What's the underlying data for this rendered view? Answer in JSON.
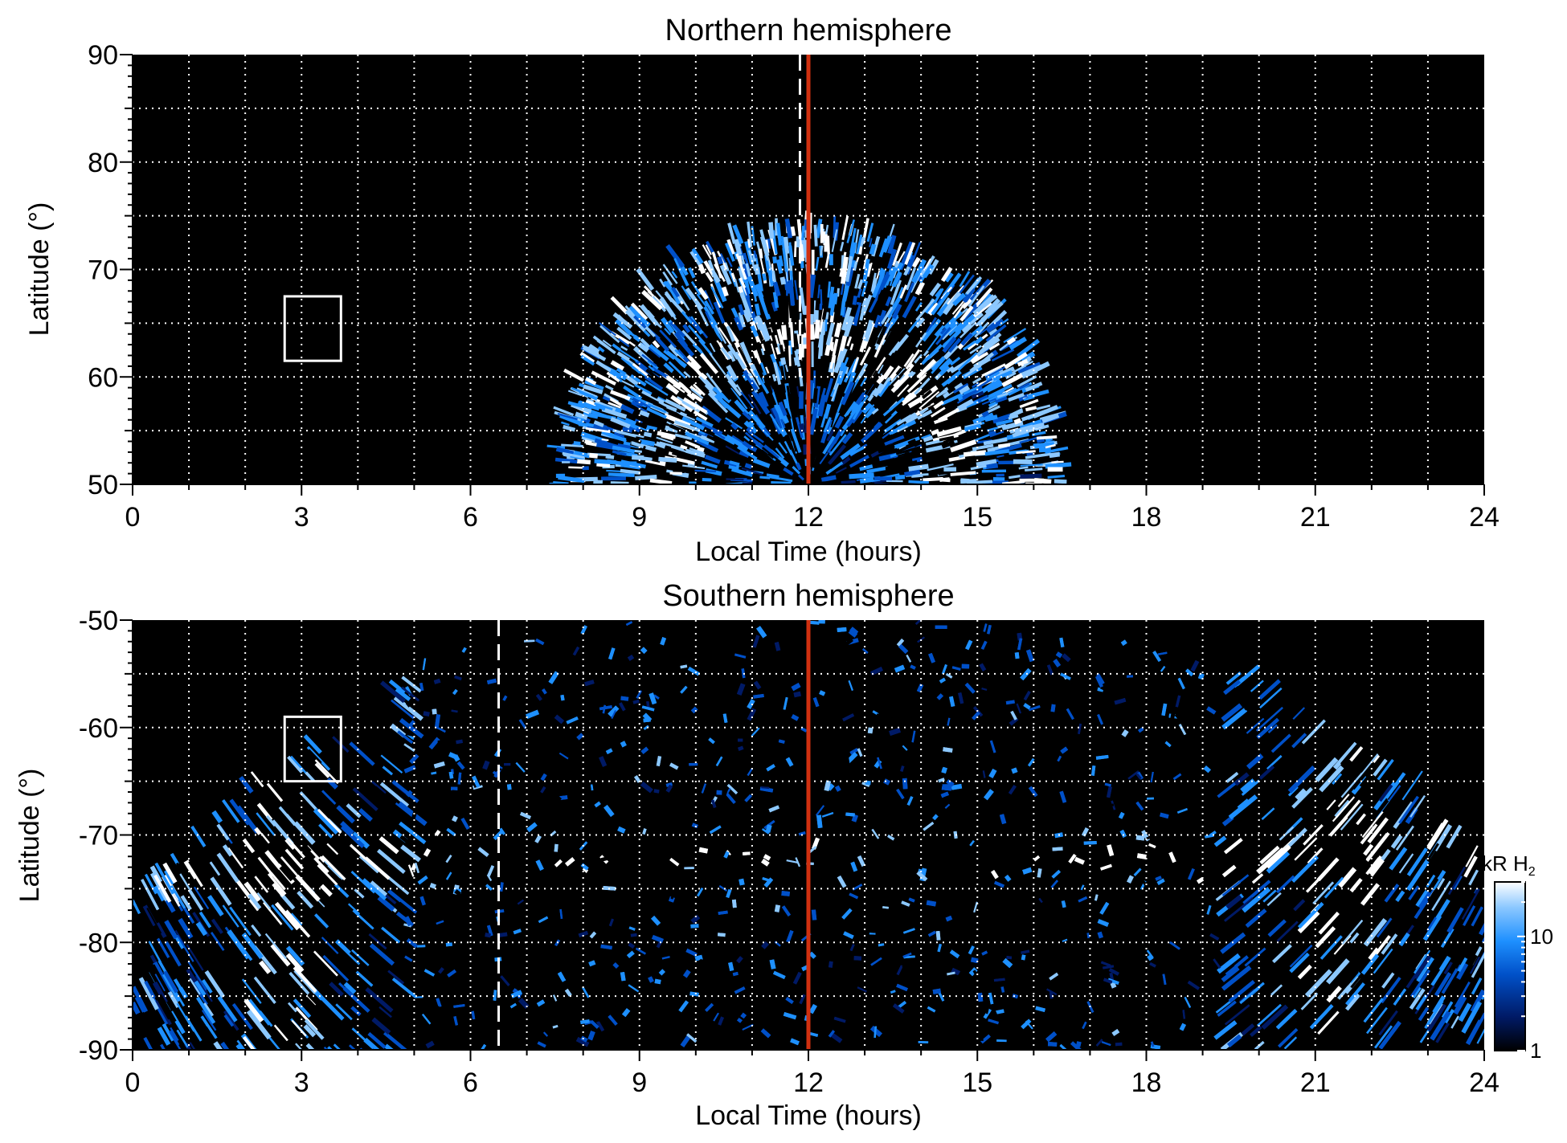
{
  "chart_data": [
    {
      "type": "heatmap",
      "title": "Northern hemisphere",
      "xlabel": "Local Time (hours)",
      "ylabel": "Latitude (°)",
      "xlim": [
        0,
        24
      ],
      "ylim": [
        50,
        90
      ],
      "xticks": [
        "0",
        "3",
        "6",
        "9",
        "12",
        "15",
        "18",
        "21",
        "24"
      ],
      "yticks": [
        "50",
        "60",
        "70",
        "80",
        "90"
      ],
      "grid": true,
      "emission_region": {
        "lt_range": [
          7.8,
          16.6
        ],
        "lat_range": [
          50,
          73.5
        ],
        "ring_lat": 63,
        "peak_lat": 73.5
      },
      "noon_line_lt": 12,
      "dashed_line_lt": 11.85,
      "box": {
        "lt_range": [
          2.7,
          3.7
        ],
        "lat_range": [
          61.5,
          67.5
        ]
      },
      "colors": {
        "background": "#000000",
        "noon_line": "#d03010",
        "dashed_line": "#ffffff",
        "box": "#ffffff",
        "grid": "#ffffff"
      }
    },
    {
      "type": "heatmap",
      "title": "Southern hemisphere",
      "xlabel": "Local Time (hours)",
      "ylabel": "Latitude (°)",
      "xlim": [
        0,
        24
      ],
      "ylim": [
        -90,
        -50
      ],
      "xticks": [
        "0",
        "3",
        "6",
        "9",
        "12",
        "15",
        "18",
        "21",
        "24"
      ],
      "yticks": [
        "-90",
        "-80",
        "-70",
        "-60",
        "-50"
      ],
      "grid": true,
      "emission_region": {
        "lt_range": [
          0,
          24
        ],
        "lat_range": [
          -90,
          -50
        ],
        "ring_lat": -72,
        "edge_lat": -75
      },
      "noon_line_lt": 12,
      "dashed_line_lt": 6.5,
      "box": {
        "lt_range": [
          2.7,
          3.7
        ],
        "lat_range": [
          -65,
          -59
        ]
      },
      "colors": {
        "background": "#000000",
        "noon_line": "#d03010",
        "dashed_line": "#ffffff",
        "box": "#ffffff",
        "grid": "#ffffff"
      }
    }
  ],
  "colorbar": {
    "label_unit": "kR H",
    "label_subscript": "2",
    "scale": "log",
    "range": [
      1,
      30
    ],
    "ticks": [
      1,
      10
    ],
    "tick_labels": [
      "1",
      "10"
    ],
    "colors": [
      "#000000",
      "#001a66",
      "#0050c8",
      "#1e90ff",
      "#8cc8ff",
      "#ffffff"
    ]
  }
}
